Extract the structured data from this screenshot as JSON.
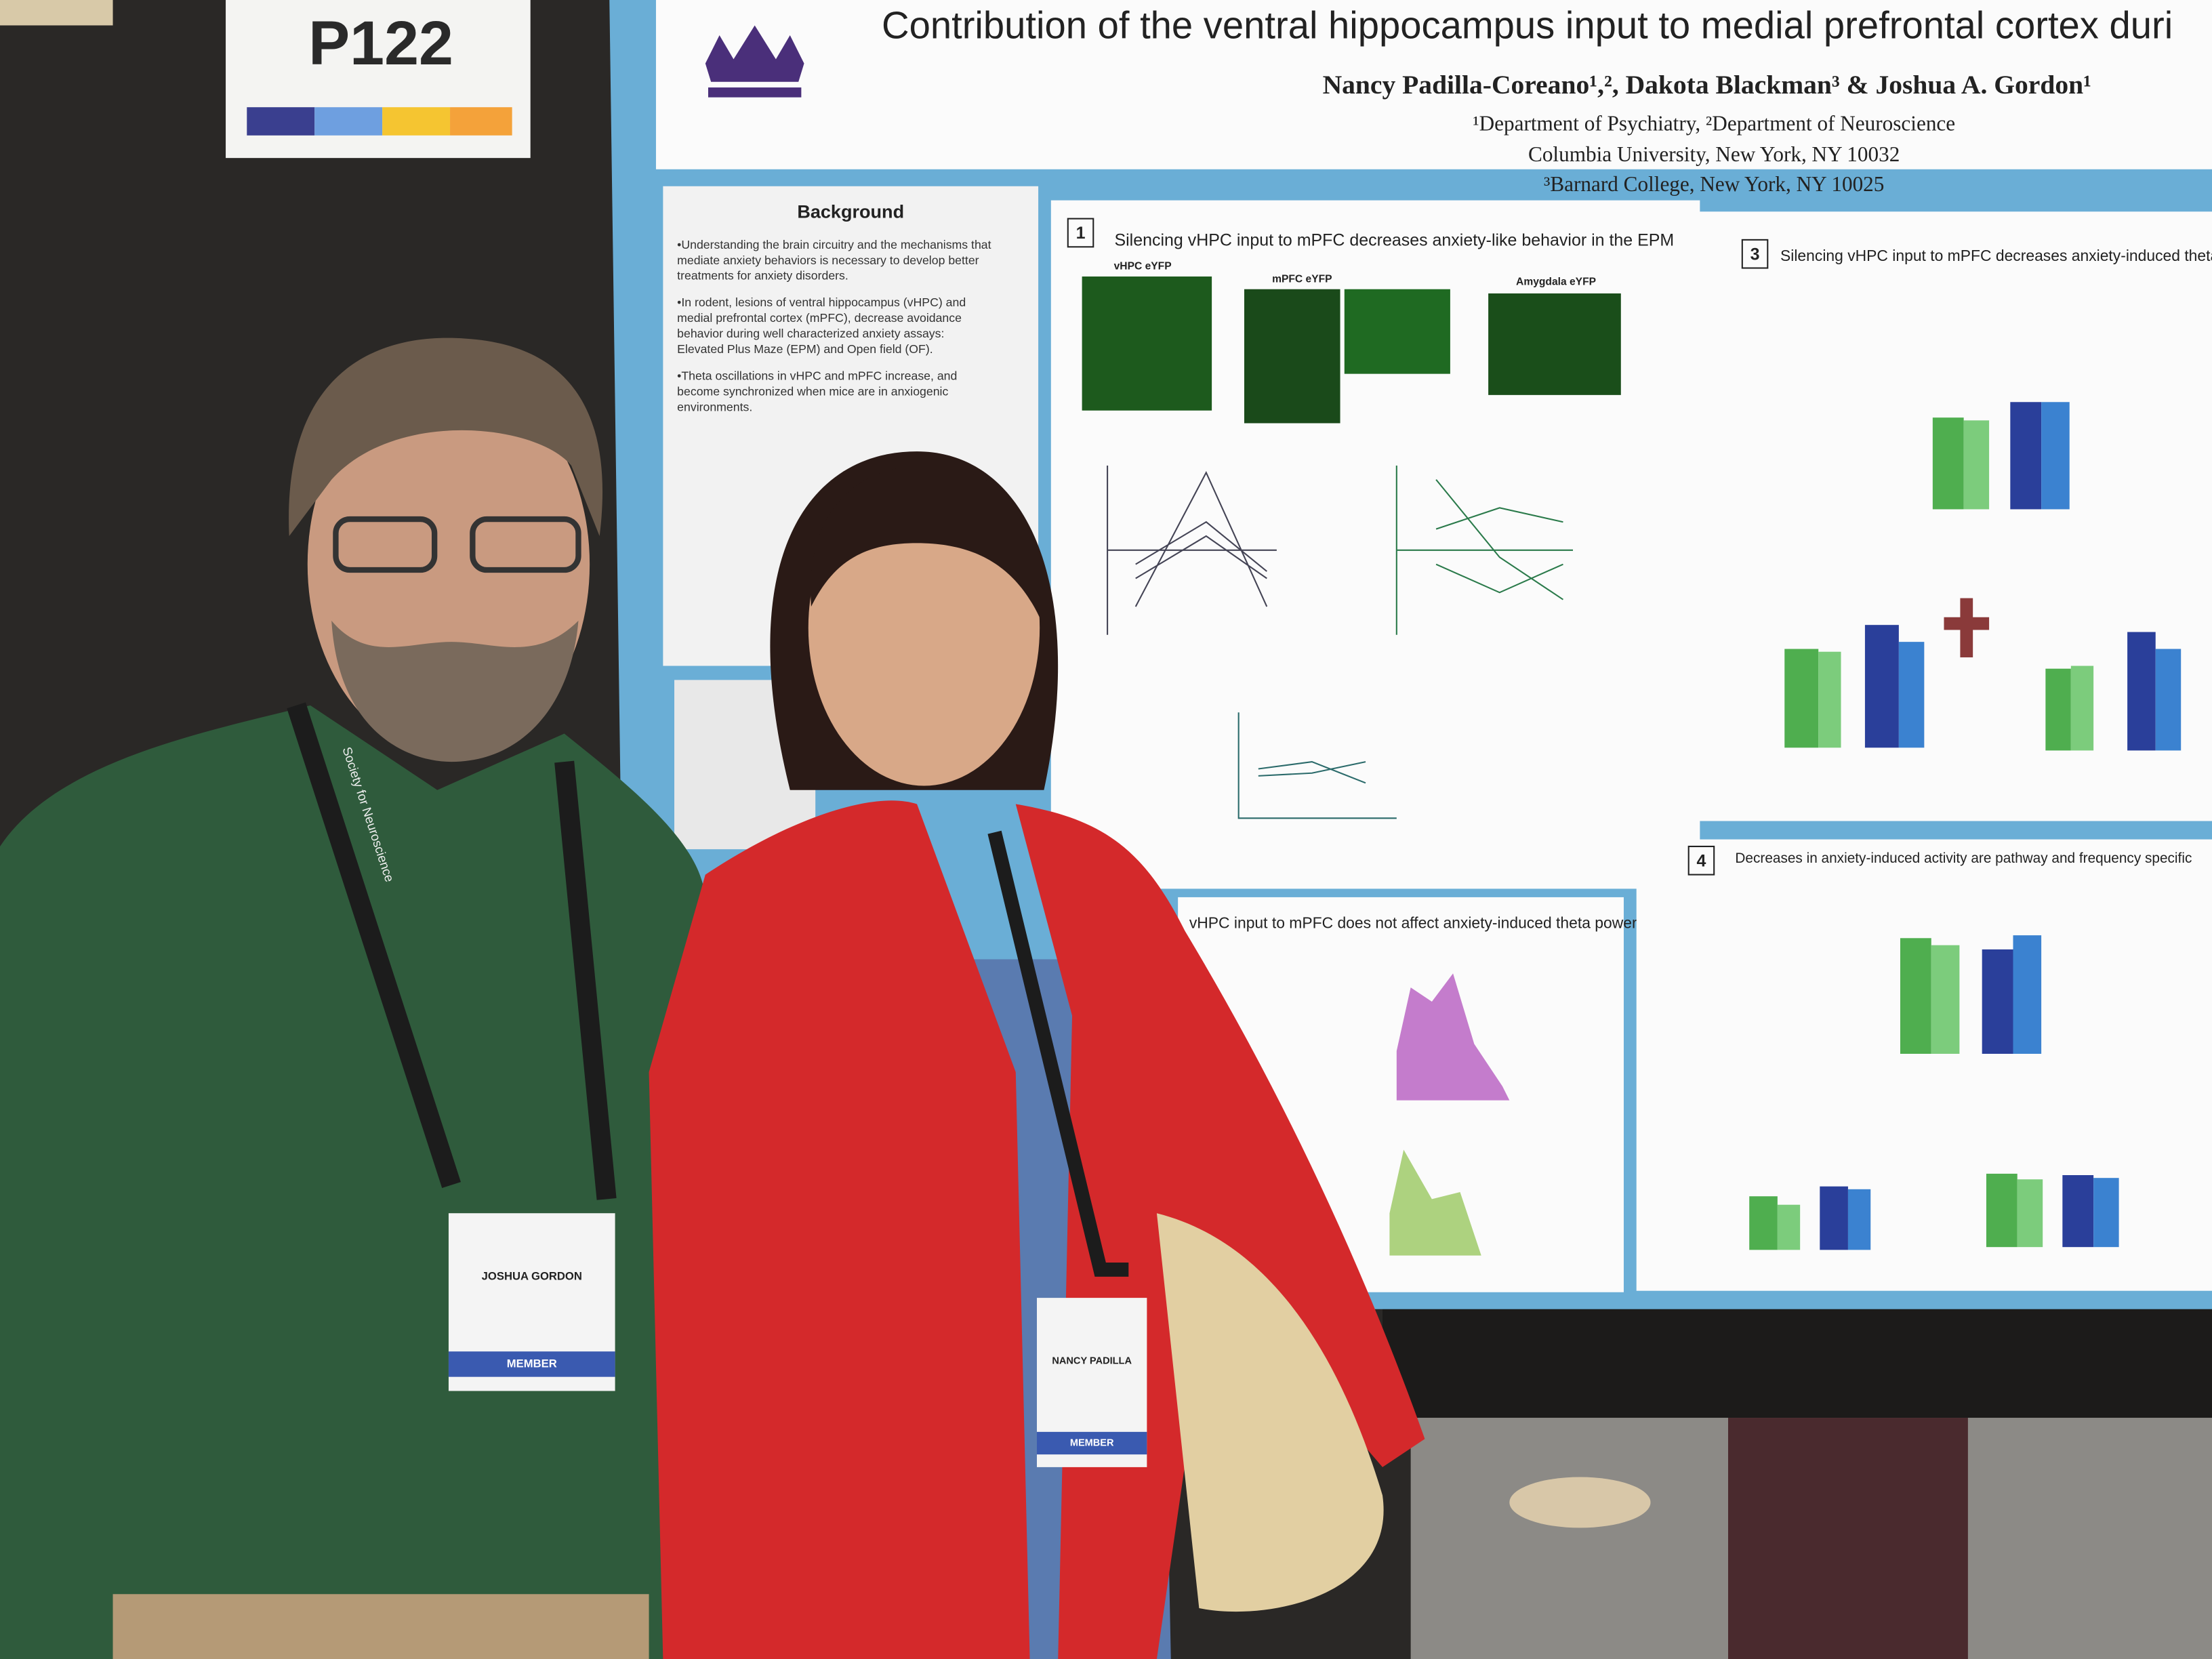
{
  "board": {
    "label": "P122"
  },
  "poster": {
    "title": "Contribution of the ventral hippocampus input to medial prefrontal cortex duri",
    "authors": "Nancy Padilla-Coreano¹,², Dakota Blackman³ & Joshua A. Gordon¹",
    "affiliations": [
      "¹Department of Psychiatry, ²Department of Neuroscience",
      "Columbia University, New York, NY 10032",
      "³Barnard College, New York, NY 10025"
    ],
    "background": {
      "heading": "Background",
      "bullets": [
        "•Understanding the brain circuitry and the mechanisms that",
        "mediate anxiety behaviors is necessary to develop better",
        "treatments for anxiety disorders.",
        "•In rodent, lesions of ventral hippocampus (vHPC) and",
        "medial prefrontal cortex (mPFC), decrease avoidance",
        "behavior during well characterized anxiety assays:",
        "Elevated Plus Maze (EPM) and Open field (OF).",
        "•Theta oscillations in vHPC and mPFC increase, and",
        "become synchronized when mice are in anxiogenic",
        "environments."
      ]
    },
    "panels": [
      {
        "number": "1",
        "heading": "Silencing vHPC input to mPFC decreases anxiety-like behavior in the EPM",
        "images": [
          "vHPC eYFP",
          "mPFC eYFP",
          "Amygdala eYFP"
        ]
      },
      {
        "heading": "vHPC input to mPFC does not affect anxiety-induced theta power"
      },
      {
        "number": "3",
        "heading": "Silencing vHPC input to mPFC decreases anxiety-induced theta sy"
      },
      {
        "number": "4",
        "heading": "Decreases in anxiety-induced activity are pathway and frequency specific"
      }
    ]
  },
  "badges": [
    {
      "name": "JOSHUA GORDON",
      "status": "MEMBER"
    },
    {
      "name": "NANCY PADILLA",
      "status": "MEMBER"
    }
  ],
  "lanyard": "Society for Neuroscience"
}
